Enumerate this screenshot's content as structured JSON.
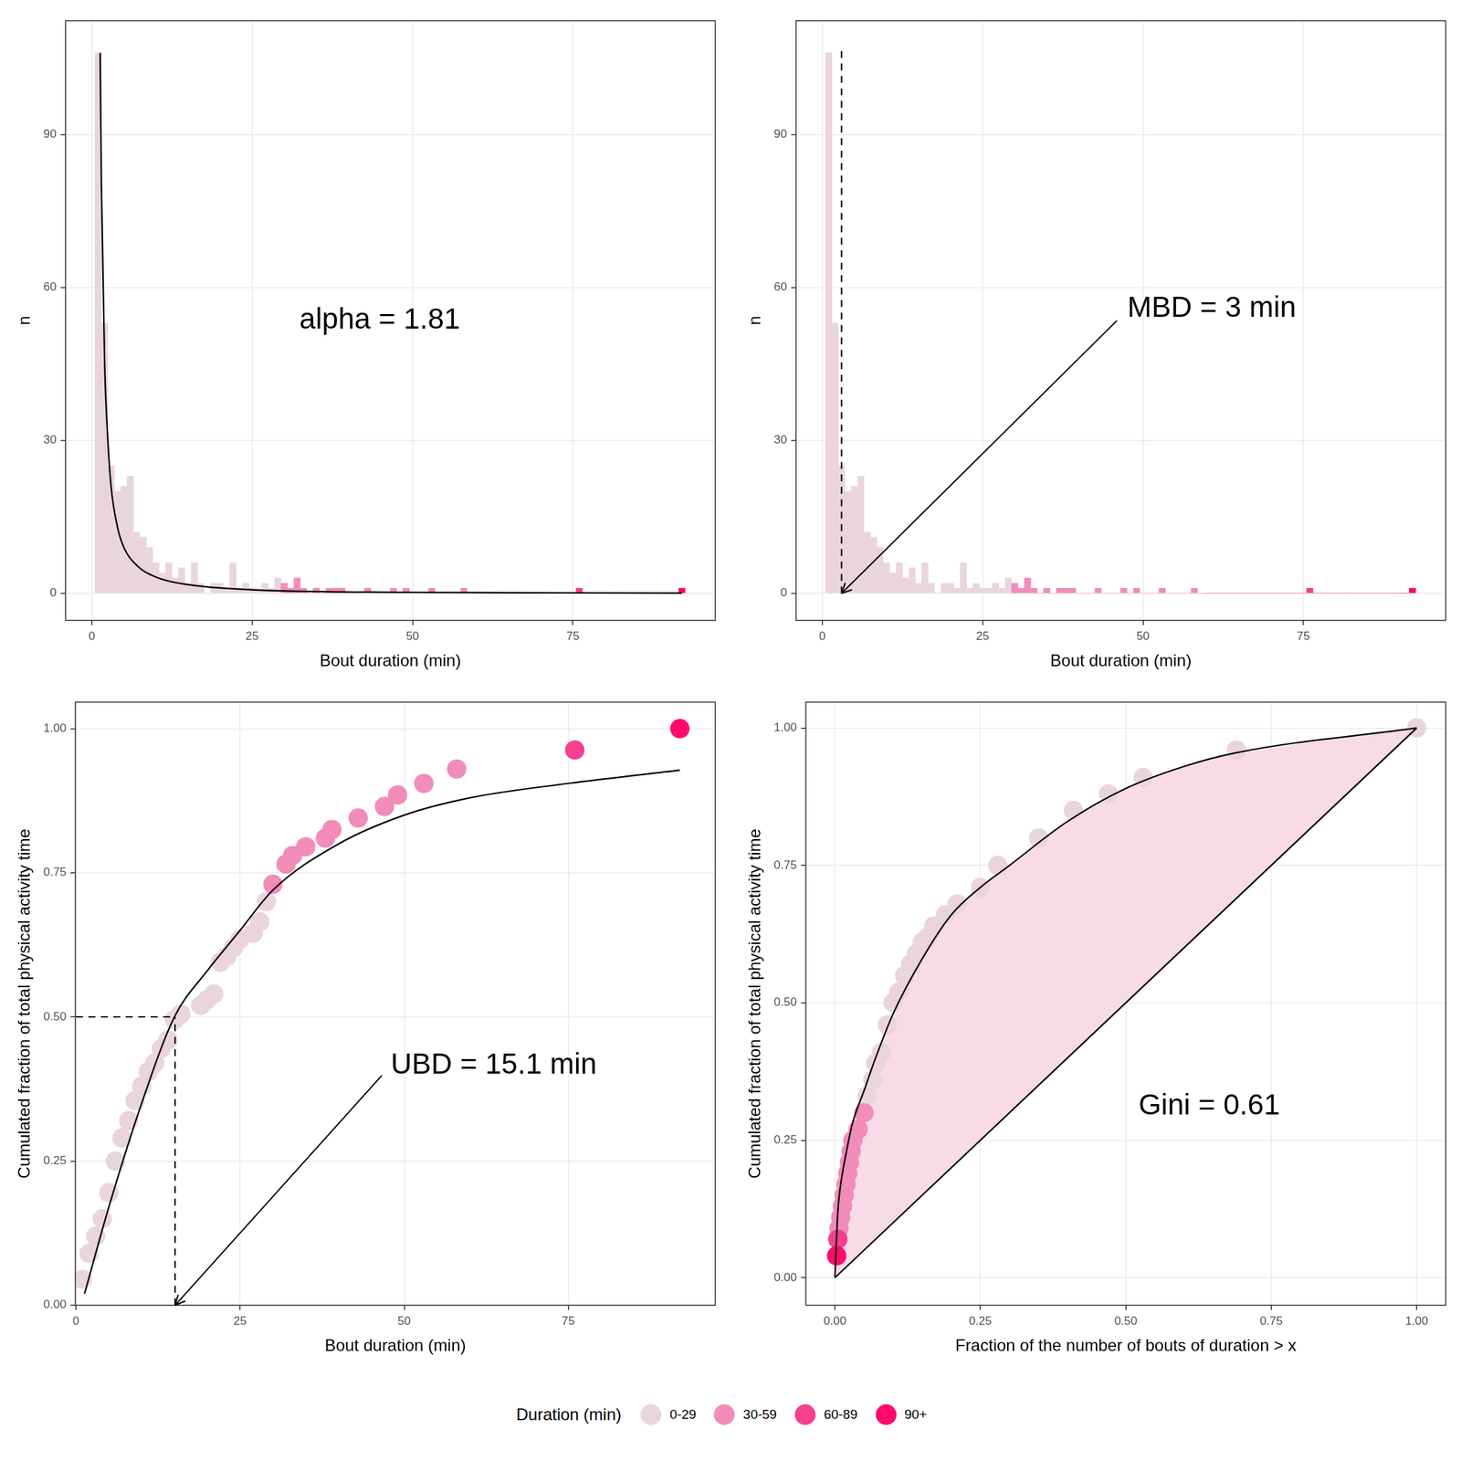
{
  "legend_title": "Duration (min)",
  "chart_data": [
    {
      "type": "histogram",
      "x_label": "Bout duration (min)",
      "y_label": "n",
      "bins": [
        0.5,
        1.5,
        2.5,
        3.5,
        4.5,
        5.5,
        6.5,
        7.5,
        8.5,
        9.5,
        10.5,
        11.5,
        12.5,
        13.5,
        14.5,
        15.5,
        16.5,
        17.5,
        18.5,
        19.5,
        20.5,
        21.5,
        22.5,
        23.5,
        24.5,
        25.5,
        26.5,
        27.5,
        28.5,
        29.5,
        30.5,
        31.5,
        32.5,
        33.5,
        34.5,
        35.5,
        36.5,
        37.5,
        38.5,
        39.5,
        40.5,
        41.5,
        42.5,
        43.5,
        44.5,
        45.5,
        46.5,
        47.5,
        48.5,
        49.5,
        50.5,
        51.5,
        52.5,
        53.5,
        54.5,
        55.5,
        56.5,
        57.5,
        58.5,
        59.5,
        60.5,
        61.5,
        62.5,
        63.5,
        64.5,
        65.5,
        66.5,
        67.5,
        68.5,
        69.5,
        70.5,
        71.5,
        72.5,
        73.5,
        74.5,
        75.5,
        76.5,
        77.5,
        78.5,
        79.5,
        80.5,
        81.5,
        82.5,
        83.5,
        84.5,
        85.5,
        86.5,
        87.5,
        88.5,
        89.5,
        90.5,
        91.5,
        92.5
      ],
      "values": [
        106,
        53,
        25,
        20,
        21,
        23,
        12,
        11,
        9,
        6,
        4,
        6,
        3,
        5,
        2,
        6,
        2,
        0,
        2,
        2,
        1,
        6,
        1,
        2,
        1,
        1,
        2,
        1,
        3,
        2,
        1,
        3,
        1,
        0,
        1,
        0,
        1,
        1,
        1,
        0,
        0,
        0,
        1,
        0,
        0,
        0,
        1,
        0,
        1,
        0,
        0,
        0,
        1,
        0,
        0,
        0,
        0,
        1,
        0,
        0,
        0,
        0,
        0,
        0,
        0,
        0,
        0,
        0,
        0,
        0,
        0,
        0,
        0,
        0,
        0,
        1,
        0,
        0,
        0,
        0,
        0,
        0,
        0,
        0,
        0,
        0,
        0,
        0,
        0,
        0,
        0,
        1
      ],
      "colors": [
        "#ead5df",
        "#ead5df",
        "#ead5df",
        "#ead5df",
        "#ead5df",
        "#ead5df",
        "#ead5df",
        "#ead5df",
        "#ead5df",
        "#ead5df",
        "#ead5df",
        "#ead5df",
        "#ead5df",
        "#ead5df",
        "#ead5df",
        "#ead5df",
        "#ead5df",
        "#ead5df",
        "#ead5df",
        "#ead5df",
        "#ead5df",
        "#ead5df",
        "#ead5df",
        "#ead5df",
        "#ead5df",
        "#ead5df",
        "#ead5df",
        "#ead5df",
        "#ead5df",
        "#f28cb8",
        "#f28cb8",
        "#f28cb8",
        "#f28cb8",
        "#f28cb8",
        "#f28cb8",
        "#f28cb8",
        "#f28cb8",
        "#f28cb8",
        "#f28cb8",
        "#f28cb8",
        "#f28cb8",
        "#f28cb8",
        "#f28cb8",
        "#f28cb8",
        "#f28cb8",
        "#f28cb8",
        "#f28cb8",
        "#f28cb8",
        "#f28cb8",
        "#f28cb8",
        "#f28cb8",
        "#f28cb8",
        "#f28cb8",
        "#f28cb8",
        "#f28cb8",
        "#f28cb8",
        "#f28cb8",
        "#f28cb8",
        "#f28cb8",
        "#f4408e",
        "#f4408e",
        "#f4408e",
        "#f4408e",
        "#f4408e",
        "#f4408e",
        "#f4408e",
        "#f4408e",
        "#f4408e",
        "#f4408e",
        "#f4408e",
        "#f4408e",
        "#f4408e",
        "#f4408e",
        "#f4408e",
        "#f4408e",
        "#f4408e",
        "#f4408e",
        "#f4408e",
        "#f4408e",
        "#f4408e",
        "#f4408e",
        "#f4408e",
        "#f4408e",
        "#f4408e",
        "#f4408e",
        "#f4408e",
        "#f4408e",
        "#f4408e",
        "#f4408e",
        "#ff0a6c",
        "#ff0a6c",
        "#ff0a6c"
      ],
      "xlim": [
        -4.1,
        97.2
      ],
      "xticks": [
        0,
        25,
        50,
        75
      ],
      "ylim": [
        -5.3,
        112.3
      ],
      "yticks": [
        0,
        30,
        60,
        90
      ],
      "grid": true,
      "lines": [
        {
          "x": [
            1.3,
            1.5,
            2,
            2.5,
            3,
            4,
            5,
            7,
            10,
            15,
            25,
            50,
            75,
            92
          ],
          "values": [
            106,
            80,
            45,
            30,
            21,
            13,
            9,
            5.5,
            3.2,
            1.7,
            0.7,
            0.2,
            0.1,
            0.05
          ],
          "color": "#000000"
        }
      ],
      "annotations": [
        {
          "text": "alpha = 1.81"
        }
      ]
    },
    {
      "type": "histogram",
      "x_label": "Bout duration (min)",
      "y_label": "n",
      "bins": [
        0.5,
        1.5,
        2.5,
        3.5,
        4.5,
        5.5,
        6.5,
        7.5,
        8.5,
        9.5,
        10.5,
        11.5,
        12.5,
        13.5,
        14.5,
        15.5,
        16.5,
        17.5,
        18.5,
        19.5,
        20.5,
        21.5,
        22.5,
        23.5,
        24.5,
        25.5,
        26.5,
        27.5,
        28.5,
        29.5,
        30.5,
        31.5,
        32.5,
        33.5,
        34.5,
        35.5,
        36.5,
        37.5,
        38.5,
        39.5,
        40.5,
        41.5,
        42.5,
        43.5,
        44.5,
        45.5,
        46.5,
        47.5,
        48.5,
        49.5,
        50.5,
        51.5,
        52.5,
        53.5,
        54.5,
        55.5,
        56.5,
        57.5,
        58.5,
        59.5,
        60.5,
        61.5,
        62.5,
        63.5,
        64.5,
        65.5,
        66.5,
        67.5,
        68.5,
        69.5,
        70.5,
        71.5,
        72.5,
        73.5,
        74.5,
        75.5,
        76.5,
        77.5,
        78.5,
        79.5,
        80.5,
        81.5,
        82.5,
        83.5,
        84.5,
        85.5,
        86.5,
        87.5,
        88.5,
        89.5,
        90.5,
        91.5,
        92.5
      ],
      "values": [
        106,
        53,
        25,
        20,
        21,
        23,
        12,
        11,
        9,
        6,
        4,
        6,
        3,
        5,
        2,
        6,
        2,
        0,
        2,
        2,
        1,
        6,
        1,
        2,
        1,
        1,
        2,
        1,
        3,
        2,
        1,
        3,
        1,
        0,
        1,
        0,
        1,
        1,
        1,
        0,
        0,
        0,
        1,
        0,
        0,
        0,
        1,
        0,
        1,
        0,
        0,
        0,
        1,
        0,
        0,
        0,
        0,
        1,
        0,
        0,
        0,
        0,
        0,
        0,
        0,
        0,
        0,
        0,
        0,
        0,
        0,
        0,
        0,
        0,
        0,
        1,
        0,
        0,
        0,
        0,
        0,
        0,
        0,
        0,
        0,
        0,
        0,
        0,
        0,
        0,
        0,
        1
      ],
      "colors": [
        "#ead5df",
        "#ead5df",
        "#ead5df",
        "#ead5df",
        "#ead5df",
        "#ead5df",
        "#ead5df",
        "#ead5df",
        "#ead5df",
        "#ead5df",
        "#ead5df",
        "#ead5df",
        "#ead5df",
        "#ead5df",
        "#ead5df",
        "#ead5df",
        "#ead5df",
        "#ead5df",
        "#ead5df",
        "#ead5df",
        "#ead5df",
        "#ead5df",
        "#ead5df",
        "#ead5df",
        "#ead5df",
        "#ead5df",
        "#ead5df",
        "#ead5df",
        "#ead5df",
        "#f28cb8",
        "#f28cb8",
        "#f28cb8",
        "#f28cb8",
        "#f28cb8",
        "#f28cb8",
        "#f28cb8",
        "#f28cb8",
        "#f28cb8",
        "#f28cb8",
        "#f28cb8",
        "#f28cb8",
        "#f28cb8",
        "#f28cb8",
        "#f28cb8",
        "#f28cb8",
        "#f28cb8",
        "#f28cb8",
        "#f28cb8",
        "#f28cb8",
        "#f28cb8",
        "#f28cb8",
        "#f28cb8",
        "#f28cb8",
        "#f28cb8",
        "#f28cb8",
        "#f28cb8",
        "#f28cb8",
        "#f28cb8",
        "#f28cb8",
        "#f4408e",
        "#f4408e",
        "#f4408e",
        "#f4408e",
        "#f4408e",
        "#f4408e",
        "#f4408e",
        "#f4408e",
        "#f4408e",
        "#f4408e",
        "#f4408e",
        "#f4408e",
        "#f4408e",
        "#f4408e",
        "#f4408e",
        "#f4408e",
        "#f4408e",
        "#f4408e",
        "#f4408e",
        "#f4408e",
        "#f4408e",
        "#f4408e",
        "#f4408e",
        "#f4408e",
        "#f4408e",
        "#f4408e",
        "#f4408e",
        "#f4408e",
        "#f4408e",
        "#f4408e",
        "#ff0a6c",
        "#ff0a6c",
        "#ff0a6c"
      ],
      "xlim": [
        -4.1,
        97.2
      ],
      "xticks": [
        0,
        25,
        50,
        75
      ],
      "ylim": [
        -5.3,
        112.3
      ],
      "yticks": [
        0,
        30,
        60,
        90
      ],
      "grid": true,
      "reference_lines": [
        {
          "x": 3,
          "y": [
            0,
            107
          ],
          "line_style": "dashed",
          "color": "#000000"
        }
      ],
      "annotations": [
        {
          "text": "MBD = 3 min",
          "arrow": true
        }
      ]
    },
    {
      "type": "scatter",
      "x_label": "Bout duration (min)",
      "y_label": "Cumulated fraction of total physical activity time",
      "series": [
        {
          "name": "0-29",
          "color": "#ead5df",
          "x": [
            1,
            2,
            3,
            4,
            5,
            6,
            7,
            8,
            9,
            10,
            11,
            12,
            13,
            14,
            15,
            16,
            19,
            20,
            21,
            22,
            23,
            24,
            25,
            27,
            28,
            29
          ],
          "values": [
            0.045,
            0.09,
            0.12,
            0.15,
            0.195,
            0.25,
            0.29,
            0.32,
            0.355,
            0.38,
            0.405,
            0.42,
            0.445,
            0.46,
            0.495,
            0.505,
            0.52,
            0.53,
            0.54,
            0.595,
            0.605,
            0.62,
            0.635,
            0.645,
            0.665,
            0.7
          ]
        },
        {
          "name": "30-59",
          "color": "#f28cb8",
          "x": [
            30,
            32,
            33,
            35,
            38,
            39,
            43,
            47,
            49,
            53,
            58
          ],
          "values": [
            0.73,
            0.765,
            0.78,
            0.795,
            0.81,
            0.825,
            0.845,
            0.865,
            0.885,
            0.905,
            0.93
          ]
        },
        {
          "name": "60-89",
          "color": "#f4408e",
          "x": [
            76
          ],
          "values": [
            0.963
          ]
        },
        {
          "name": "90+",
          "color": "#ff0a6c",
          "x": [
            92
          ],
          "values": [
            1.0
          ]
        }
      ],
      "xlim": [
        -0.1,
        97.4
      ],
      "xticks": [
        0,
        25,
        50,
        75
      ],
      "ylim": [
        0,
        1.046
      ],
      "yticks": [
        {
          "value": 0,
          "label": "0.00"
        },
        {
          "value": 0.25,
          "label": "0.25"
        },
        {
          "value": 0.5,
          "label": "0.50"
        },
        {
          "value": 0.75,
          "label": "0.75"
        },
        {
          "value": 1,
          "label": "1.00"
        }
      ],
      "grid": true,
      "lines": [
        {
          "x": [
            1.3,
            5,
            10,
            15,
            20,
            25,
            30,
            40,
            50,
            60,
            75,
            92
          ],
          "values": [
            0.02,
            0.17,
            0.35,
            0.5,
            0.58,
            0.65,
            0.72,
            0.8,
            0.85,
            0.88,
            0.905,
            0.928
          ],
          "color": "#000000"
        }
      ],
      "reference_lines": [
        {
          "x": 15.1,
          "y": [
            0,
            0.5
          ],
          "line_style": "dashed",
          "color": "#000000"
        },
        {
          "x": [
            0,
            15.1
          ],
          "y": 0.5,
          "line_style": "dashed",
          "color": "#000000"
        }
      ],
      "annotations": [
        {
          "text": "UBD = 15.1 min",
          "arrow": true
        }
      ]
    },
    {
      "type": "scatter",
      "x_label": "Fraction of the number of bouts of duration > x",
      "y_label": "Cumulated fraction of total physical activity time",
      "series": [
        {
          "name": "0-29",
          "color": "#ead5df",
          "x": [
            0.055,
            0.065,
            0.07,
            0.08,
            0.09,
            0.1,
            0.11,
            0.12,
            0.13,
            0.14,
            0.15,
            0.16,
            0.17,
            0.19,
            0.21,
            0.25,
            0.28,
            0.35,
            0.41,
            0.47,
            0.53,
            0.69,
            1.0
          ],
          "values": [
            0.33,
            0.36,
            0.39,
            0.41,
            0.46,
            0.5,
            0.52,
            0.55,
            0.57,
            0.59,
            0.61,
            0.62,
            0.64,
            0.66,
            0.68,
            0.71,
            0.75,
            0.8,
            0.85,
            0.88,
            0.91,
            0.96,
            1.0
          ]
        },
        {
          "name": "30-59",
          "color": "#f28cb8",
          "x": [
            0.007,
            0.01,
            0.013,
            0.016,
            0.019,
            0.022,
            0.025,
            0.028,
            0.031,
            0.04,
            0.05
          ],
          "values": [
            0.09,
            0.11,
            0.13,
            0.15,
            0.17,
            0.19,
            0.21,
            0.23,
            0.25,
            0.27,
            0.3
          ]
        },
        {
          "name": "60-89",
          "color": "#f4408e",
          "x": [
            0.005
          ],
          "values": [
            0.07
          ]
        },
        {
          "name": "90+",
          "color": "#ff0a6c",
          "x": [
            0.003
          ],
          "values": [
            0.04
          ]
        }
      ],
      "xlim": [
        -0.05,
        1.05
      ],
      "xticks": [
        {
          "value": 0,
          "label": "0.00"
        },
        {
          "value": 0.25,
          "label": "0.25"
        },
        {
          "value": 0.5,
          "label": "0.50"
        },
        {
          "value": 0.75,
          "label": "0.75"
        },
        {
          "value": 1,
          "label": "1.00"
        }
      ],
      "ylim": [
        -0.05,
        1.047
      ],
      "yticks": [
        {
          "value": 0,
          "label": "0.00"
        },
        {
          "value": 0.25,
          "label": "0.25"
        },
        {
          "value": 0.5,
          "label": "0.50"
        },
        {
          "value": 0.75,
          "label": "0.75"
        },
        {
          "value": 1,
          "label": "1.00"
        }
      ],
      "grid": true,
      "lines": [
        {
          "x": [
            0,
            0.005,
            0.01,
            0.02,
            0.03,
            0.05,
            0.07,
            0.1,
            0.15,
            0.2,
            0.25,
            0.3,
            0.4,
            0.5,
            0.6,
            0.69,
            1
          ],
          "values": [
            0,
            0.12,
            0.17,
            0.23,
            0.28,
            0.34,
            0.4,
            0.48,
            0.58,
            0.66,
            0.71,
            0.75,
            0.83,
            0.89,
            0.93,
            0.955,
            1
          ],
          "color": "#000000",
          "fill": "next",
          "fill_color": "#f8dbe7"
        },
        {
          "x": [
            0,
            1
          ],
          "values": [
            0,
            1
          ],
          "color": "#000000"
        }
      ],
      "annotations": [
        {
          "text": "Gini = 0.61"
        }
      ]
    }
  ]
}
